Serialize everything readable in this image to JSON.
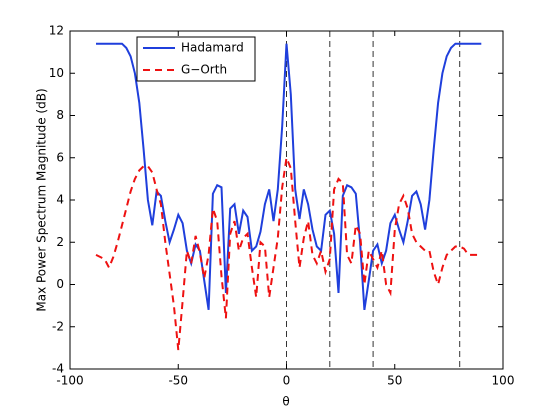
{
  "chart_data": {
    "type": "line",
    "xlabel": "θ",
    "ylabel": "Max Power Spectrum Magnitude (dB)",
    "x": [
      -88,
      -86,
      -84,
      -82,
      -80,
      -78,
      -76,
      -74,
      -72,
      -70,
      -68,
      -66,
      -64,
      -62,
      -60,
      -58,
      -56,
      -54,
      -52,
      -50,
      -48,
      -46,
      -44,
      -42,
      -40,
      -38,
      -36,
      -34,
      -32,
      -30,
      -28,
      -26,
      -24,
      -22,
      -20,
      -18,
      -16,
      -14,
      -12,
      -10,
      -8,
      -6,
      -4,
      -2,
      0,
      2,
      4,
      6,
      8,
      10,
      12,
      14,
      16,
      18,
      20,
      22,
      24,
      26,
      28,
      30,
      32,
      34,
      36,
      38,
      40,
      42,
      44,
      46,
      48,
      50,
      52,
      54,
      56,
      58,
      60,
      62,
      64,
      66,
      68,
      70,
      72,
      74,
      76,
      78,
      80,
      82,
      84,
      86,
      88,
      90
    ],
    "series": [
      {
        "name": "Hadamard",
        "color": "#1f3fdc",
        "dash": false,
        "values": [
          11.4,
          11.4,
          11.4,
          11.4,
          11.4,
          11.4,
          11.4,
          11.2,
          10.8,
          10.0,
          8.6,
          6.4,
          4.0,
          2.8,
          4.4,
          4.2,
          3.0,
          2.0,
          2.6,
          3.3,
          2.9,
          1.6,
          1.0,
          1.9,
          1.6,
          0.2,
          -1.2,
          4.3,
          4.7,
          4.6,
          -0.4,
          3.6,
          3.8,
          2.4,
          3.5,
          3.2,
          1.6,
          1.8,
          2.5,
          3.8,
          4.5,
          3.0,
          4.5,
          7.5,
          11.4,
          9.0,
          4.5,
          3.1,
          4.5,
          3.8,
          2.6,
          1.8,
          1.6,
          3.3,
          3.5,
          2.4,
          -0.4,
          4.2,
          4.7,
          4.6,
          4.3,
          2.0,
          -1.2,
          0.2,
          1.6,
          1.9,
          1.0,
          1.6,
          2.9,
          3.3,
          2.6,
          2.0,
          3.0,
          4.2,
          4.4,
          3.8,
          2.6,
          4.0,
          6.4,
          8.6,
          10.0,
          10.8,
          11.2,
          11.4,
          11.4,
          11.4,
          11.4,
          11.4,
          11.4,
          11.4
        ]
      },
      {
        "name": "G−Orth",
        "color": "#ee1111",
        "dash": true,
        "values": [
          1.4,
          1.3,
          1.2,
          0.8,
          1.3,
          2.0,
          2.8,
          3.6,
          4.4,
          5.0,
          5.4,
          5.6,
          5.6,
          5.3,
          4.5,
          3.8,
          2.0,
          0.5,
          -1.0,
          -3.1,
          -0.8,
          1.6,
          1.0,
          2.3,
          1.5,
          0.3,
          1.4,
          3.6,
          3.0,
          0.4,
          -1.6,
          2.4,
          3.0,
          1.6,
          2.2,
          2.4,
          0.8,
          -0.6,
          2.0,
          1.8,
          -0.6,
          0.8,
          2.2,
          4.6,
          6.0,
          5.5,
          3.0,
          0.8,
          2.2,
          3.0,
          1.4,
          1.0,
          1.6,
          0.6,
          1.2,
          4.5,
          5.0,
          4.8,
          1.4,
          1.0,
          2.8,
          2.4,
          0.0,
          1.6,
          1.2,
          0.8,
          1.6,
          0.0,
          -0.4,
          2.6,
          3.8,
          4.2,
          3.6,
          2.4,
          2.0,
          1.8,
          1.6,
          1.6,
          0.6,
          0.0,
          0.8,
          1.4,
          1.6,
          1.8,
          1.8,
          1.7,
          1.4,
          1.4,
          1.4,
          1.4
        ]
      }
    ],
    "vlines": [
      0,
      20,
      40,
      80
    ],
    "xlim": [
      -100,
      100
    ],
    "xticks": [
      -100,
      -50,
      0,
      50,
      100
    ],
    "ylim": [
      -4,
      12
    ],
    "yticks": [
      -4,
      -2,
      0,
      2,
      4,
      6,
      8,
      10,
      12
    ],
    "legend": "upper left",
    "grid": false
  }
}
